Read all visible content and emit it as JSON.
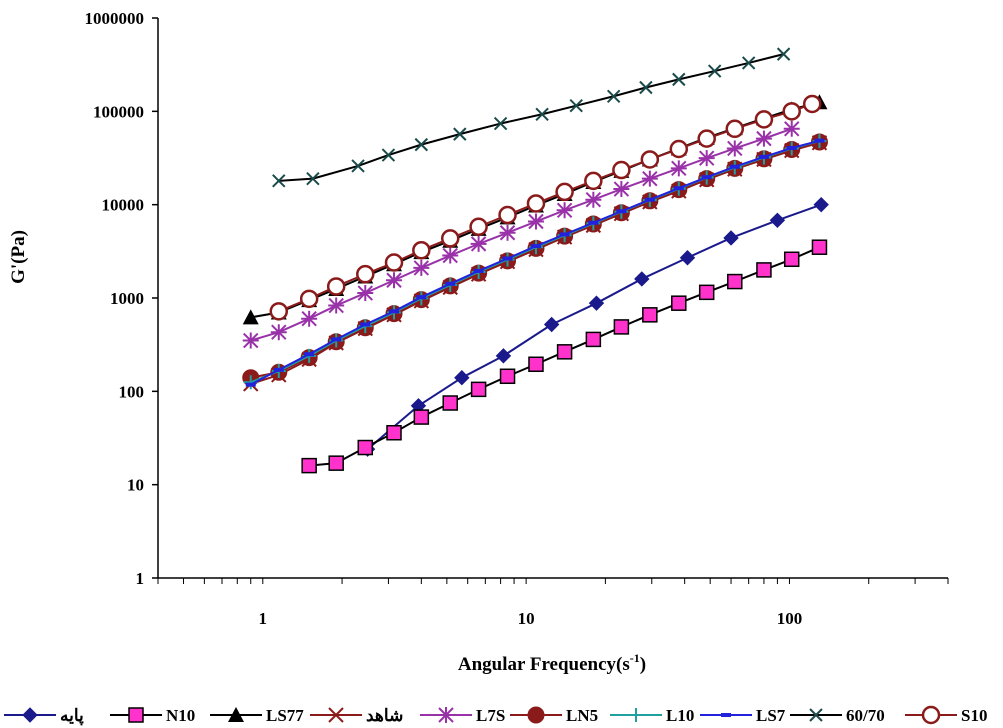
{
  "chart_data": {
    "type": "line",
    "xlabel": "Angular Frequency(s",
    "xlabel_sup": "-1",
    "xlabel_close": ")",
    "ylabel": "G'(Pa)",
    "x_scale": "log",
    "y_scale": "log",
    "xlim": [
      0.4,
      400
    ],
    "ylim": [
      1,
      1000000
    ],
    "x_ticks": [
      {
        "value": 1,
        "label": "1"
      },
      {
        "value": 10,
        "label": "10"
      },
      {
        "value": 100,
        "label": "100"
      }
    ],
    "y_ticks": [
      {
        "value": 1,
        "label": "1"
      },
      {
        "value": 10,
        "label": "10"
      },
      {
        "value": 100,
        "label": "100"
      },
      {
        "value": 1000,
        "label": "1000"
      },
      {
        "value": 10000,
        "label": "10000"
      },
      {
        "value": 100000,
        "label": "100000"
      },
      {
        "value": 1000000,
        "label": "1000000"
      }
    ],
    "grid": false,
    "legend_position": "bottom",
    "series": [
      {
        "name": "پایه",
        "color": "#1a1a8c",
        "line_color": "#1a1a8c",
        "marker": "diamond",
        "x": [
          2.5,
          3.9,
          5.7,
          8.2,
          12.5,
          18.5,
          27.5,
          41,
          60,
          90,
          132
        ],
        "y": [
          24,
          70,
          140,
          240,
          520,
          880,
          1600,
          2700,
          4400,
          6800,
          10000
        ]
      },
      {
        "name": "N10",
        "color": "#ff33cc",
        "line_color": "#000000",
        "marker": "square",
        "x": [
          1.5,
          1.9,
          2.45,
          3.15,
          4.0,
          5.15,
          6.6,
          8.5,
          10.9,
          14.0,
          18.0,
          23.0,
          29.5,
          38,
          48.5,
          62,
          80,
          102,
          130
        ],
        "y": [
          16,
          17,
          25,
          36,
          53,
          75,
          105,
          145,
          195,
          265,
          360,
          490,
          660,
          880,
          1150,
          1500,
          2000,
          2600,
          3500
        ]
      },
      {
        "name": "LS77",
        "color": "#000000",
        "line_color": "#000000",
        "marker": "triangle",
        "x": [
          0.9,
          1.15,
          1.5,
          1.9,
          2.45,
          3.15,
          4.0,
          5.15,
          6.6,
          8.5,
          10.9,
          14.0,
          18.0,
          23.0,
          29.5,
          38,
          48.5,
          62,
          80,
          102,
          130
        ],
        "y": [
          620,
          700,
          950,
          1250,
          1700,
          2300,
          3100,
          4100,
          5500,
          7300,
          9800,
          13000,
          17500,
          23000,
          30500,
          40000,
          52000,
          66000,
          84000,
          105000,
          125000
        ]
      },
      {
        "name": "شاهد",
        "color": "#8b1a1a",
        "line_color": "#8b1a1a",
        "marker": "x",
        "x": [
          0.9,
          1.15,
          1.5,
          1.9,
          2.45,
          3.15,
          4.0,
          5.15,
          6.6,
          8.5,
          10.9,
          14.0,
          18.0,
          23.0,
          29.5,
          38,
          48.5,
          62,
          80,
          102,
          130
        ],
        "y": [
          120,
          150,
          220,
          330,
          470,
          660,
          930,
          1300,
          1800,
          2450,
          3300,
          4500,
          6000,
          8000,
          10700,
          14000,
          18500,
          24000,
          30500,
          38000,
          46000
        ]
      },
      {
        "name": "L7S",
        "color": "#9932a8",
        "line_color": "#9932a8",
        "marker": "asterisk",
        "x": [
          0.9,
          1.15,
          1.5,
          1.9,
          2.45,
          3.15,
          4.0,
          5.15,
          6.6,
          8.5,
          10.9,
          14.0,
          18.0,
          23.0,
          29.5,
          38,
          48.5,
          62,
          80,
          102
        ],
        "y": [
          350,
          430,
          600,
          830,
          1130,
          1550,
          2100,
          2850,
          3800,
          5000,
          6600,
          8700,
          11300,
          14700,
          19000,
          24500,
          31500,
          40000,
          51000,
          65000
        ]
      },
      {
        "name": "LN5",
        "color": "#8b1a1a",
        "line_color": "#8b1a1a",
        "marker": "circle-filled",
        "x": [
          0.9,
          1.15,
          1.5,
          1.9,
          2.45,
          3.15,
          4.0,
          5.15,
          6.6,
          8.5,
          10.9,
          14.0,
          18.0,
          23.0,
          29.5,
          38,
          48.5,
          62,
          80,
          102,
          130
        ],
        "y": [
          140,
          160,
          230,
          340,
          480,
          680,
          960,
          1350,
          1850,
          2500,
          3400,
          4600,
          6200,
          8200,
          11000,
          14500,
          19000,
          24500,
          31000,
          39000,
          47000
        ]
      },
      {
        "name": "L10",
        "color": "#20a0a0",
        "line_color": "#20a0a0",
        "marker": "plus",
        "x": [
          0.9,
          1.15,
          1.5,
          1.9,
          2.45,
          3.15,
          4.0,
          5.15,
          6.6,
          8.5,
          10.9,
          14.0,
          18.0,
          23.0,
          29.5,
          38,
          48.5,
          62,
          80,
          102,
          130
        ],
        "y": [
          125,
          165,
          240,
          350,
          500,
          700,
          990,
          1380,
          1900,
          2580,
          3500,
          4700,
          6300,
          8400,
          11200,
          14800,
          19500,
          25000,
          32000,
          40000,
          48000
        ]
      },
      {
        "name": "LS7",
        "color": "#2222dd",
        "line_color": "#2222dd",
        "marker": "dash",
        "x": [
          0.9,
          1.15,
          1.5,
          1.9,
          2.45,
          3.15,
          4.0,
          5.15,
          6.6,
          8.5,
          10.9,
          14.0,
          18.0,
          23.0,
          29.5,
          38,
          48.5,
          62,
          80,
          102,
          130
        ],
        "y": [
          118,
          170,
          250,
          360,
          520,
          720,
          1020,
          1420,
          1950,
          2650,
          3600,
          4800,
          6400,
          8500,
          11300,
          15000,
          19700,
          25500,
          32500,
          40500,
          48500
        ]
      },
      {
        "name": "60/70",
        "color": "#1a4a4a",
        "line_color": "#000000",
        "marker": "xmark",
        "x": [
          1.15,
          1.55,
          2.3,
          3.0,
          4.0,
          5.6,
          8.0,
          11.5,
          15.5,
          21.5,
          28.5,
          38,
          52,
          70,
          95
        ],
        "y": [
          18000,
          19000,
          26000,
          34000,
          44000,
          57000,
          74000,
          93000,
          115000,
          145000,
          180000,
          220000,
          270000,
          330000,
          410000
        ]
      },
      {
        "name": "S10",
        "color": "#8b1a1a",
        "line_color": "#8b1a1a",
        "marker": "circle-open",
        "x": [
          1.15,
          1.5,
          1.9,
          2.45,
          3.15,
          4.0,
          5.15,
          6.6,
          8.5,
          10.9,
          14.0,
          18.0,
          23.0,
          29.5,
          38,
          48.5,
          62,
          80,
          102,
          122
        ],
        "y": [
          720,
          980,
          1330,
          1800,
          2400,
          3250,
          4350,
          5800,
          7750,
          10300,
          13700,
          18000,
          23500,
          30500,
          39500,
          51000,
          65000,
          82000,
          100000,
          120000
        ]
      }
    ]
  }
}
